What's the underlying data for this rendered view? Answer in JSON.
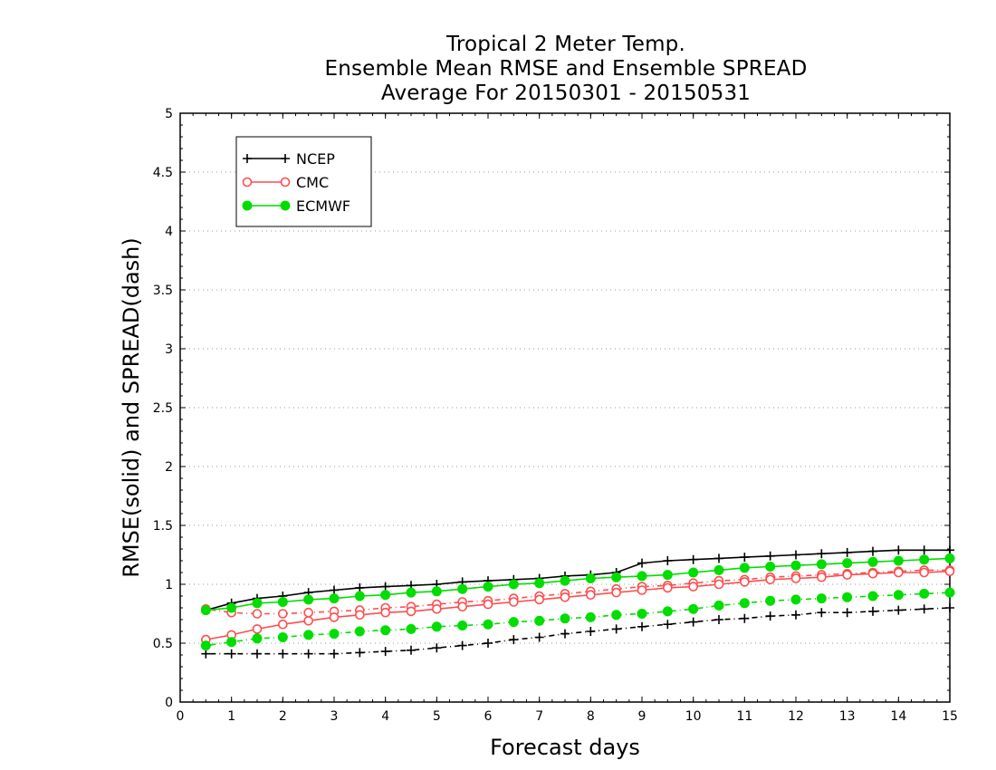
{
  "chart_data": {
    "type": "line",
    "title": [
      "Tropical 2 Meter Temp.",
      "Ensemble Mean RMSE and Ensemble SPREAD",
      "Average For 20150301 - 20150531"
    ],
    "xlabel": "Forecast days",
    "ylabel": "RMSE(solid) and SPREAD(dash)",
    "xlim": [
      0,
      15
    ],
    "ylim": [
      0,
      5
    ],
    "xticks": [
      "0",
      "1",
      "2",
      "3",
      "4",
      "5",
      "6",
      "7",
      "8",
      "9",
      "10",
      "11",
      "12",
      "13",
      "14",
      "15"
    ],
    "yticks": [
      "0",
      "0.5",
      "1",
      "1.5",
      "2",
      "2.5",
      "3",
      "3.5",
      "4",
      "4.5",
      "5"
    ],
    "grid": "horizontal-dotted",
    "legend_position": "top-left",
    "x": [
      0.5,
      1,
      1.5,
      2,
      2.5,
      3,
      3.5,
      4,
      4.5,
      5,
      5.5,
      6,
      6.5,
      7,
      7.5,
      8,
      8.5,
      9,
      9.5,
      10,
      10.5,
      11,
      11.5,
      12,
      12.5,
      13,
      13.5,
      14,
      14.5,
      15
    ],
    "series": [
      {
        "name": "NCEP",
        "color": "#000000",
        "marker": "plus",
        "rmse": [
          0.78,
          0.84,
          0.88,
          0.9,
          0.93,
          0.95,
          0.97,
          0.98,
          0.99,
          1.0,
          1.02,
          1.03,
          1.04,
          1.05,
          1.07,
          1.08,
          1.1,
          1.18,
          1.2,
          1.21,
          1.22,
          1.23,
          1.24,
          1.25,
          1.26,
          1.27,
          1.28,
          1.29,
          1.29,
          1.29
        ],
        "spread": [
          0.41,
          0.41,
          0.41,
          0.41,
          0.41,
          0.41,
          0.42,
          0.43,
          0.44,
          0.46,
          0.48,
          0.5,
          0.53,
          0.55,
          0.58,
          0.6,
          0.62,
          0.64,
          0.66,
          0.68,
          0.7,
          0.71,
          0.73,
          0.74,
          0.76,
          0.76,
          0.77,
          0.78,
          0.79,
          0.8
        ]
      },
      {
        "name": "CMC",
        "color": "#ff4d4d",
        "marker": "open-circle",
        "rmse": [
          0.53,
          0.57,
          0.62,
          0.66,
          0.69,
          0.72,
          0.74,
          0.76,
          0.77,
          0.79,
          0.81,
          0.83,
          0.85,
          0.87,
          0.89,
          0.91,
          0.93,
          0.95,
          0.97,
          0.98,
          1.0,
          1.02,
          1.04,
          1.05,
          1.06,
          1.08,
          1.09,
          1.1,
          1.1,
          1.11
        ],
        "spread": [
          0.79,
          0.76,
          0.75,
          0.75,
          0.76,
          0.77,
          0.78,
          0.8,
          0.81,
          0.83,
          0.85,
          0.86,
          0.88,
          0.9,
          0.92,
          0.94,
          0.96,
          0.98,
          0.99,
          1.01,
          1.03,
          1.04,
          1.06,
          1.07,
          1.08,
          1.09,
          1.1,
          1.11,
          1.12,
          1.12
        ]
      },
      {
        "name": "ECMWF",
        "color": "#00dd00",
        "marker": "filled-circle",
        "rmse": [
          0.78,
          0.8,
          0.84,
          0.85,
          0.87,
          0.88,
          0.9,
          0.91,
          0.93,
          0.94,
          0.96,
          0.98,
          1.0,
          1.01,
          1.03,
          1.05,
          1.06,
          1.07,
          1.08,
          1.1,
          1.12,
          1.14,
          1.15,
          1.16,
          1.17,
          1.18,
          1.19,
          1.2,
          1.21,
          1.22
        ],
        "spread": [
          0.48,
          0.51,
          0.54,
          0.55,
          0.57,
          0.58,
          0.6,
          0.61,
          0.62,
          0.64,
          0.65,
          0.66,
          0.68,
          0.69,
          0.71,
          0.72,
          0.74,
          0.75,
          0.77,
          0.79,
          0.82,
          0.84,
          0.86,
          0.87,
          0.88,
          0.89,
          0.9,
          0.91,
          0.92,
          0.93
        ]
      }
    ]
  }
}
